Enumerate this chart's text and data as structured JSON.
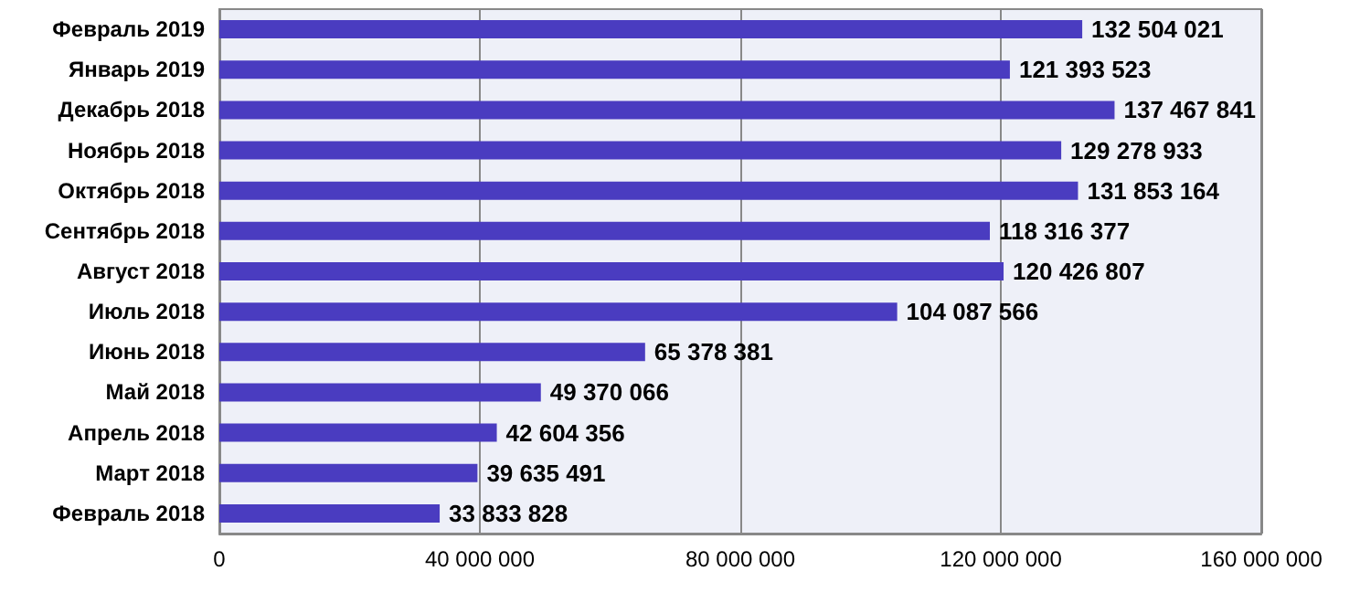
{
  "chart_data": {
    "type": "bar",
    "orientation": "horizontal",
    "categories": [
      "Февраль 2019",
      "Январь 2019",
      "Декабрь 2018",
      "Ноябрь 2018",
      "Октябрь 2018",
      "Сентябрь 2018",
      "Август 2018",
      "Июль 2018",
      "Июнь 2018",
      "Май 2018",
      "Апрель 2018",
      "Март 2018",
      "Февраль 2018"
    ],
    "values": [
      132504021,
      121393523,
      137467841,
      129278933,
      131853164,
      118316377,
      120426807,
      104087566,
      65378381,
      49370066,
      42604356,
      39635491,
      33833828
    ],
    "color": "#4a3cc0",
    "xlim": [
      0,
      160000000
    ],
    "xticks": [
      0,
      40000000,
      80000000,
      120000000,
      160000000
    ],
    "grid": "x",
    "data_labels": true
  }
}
